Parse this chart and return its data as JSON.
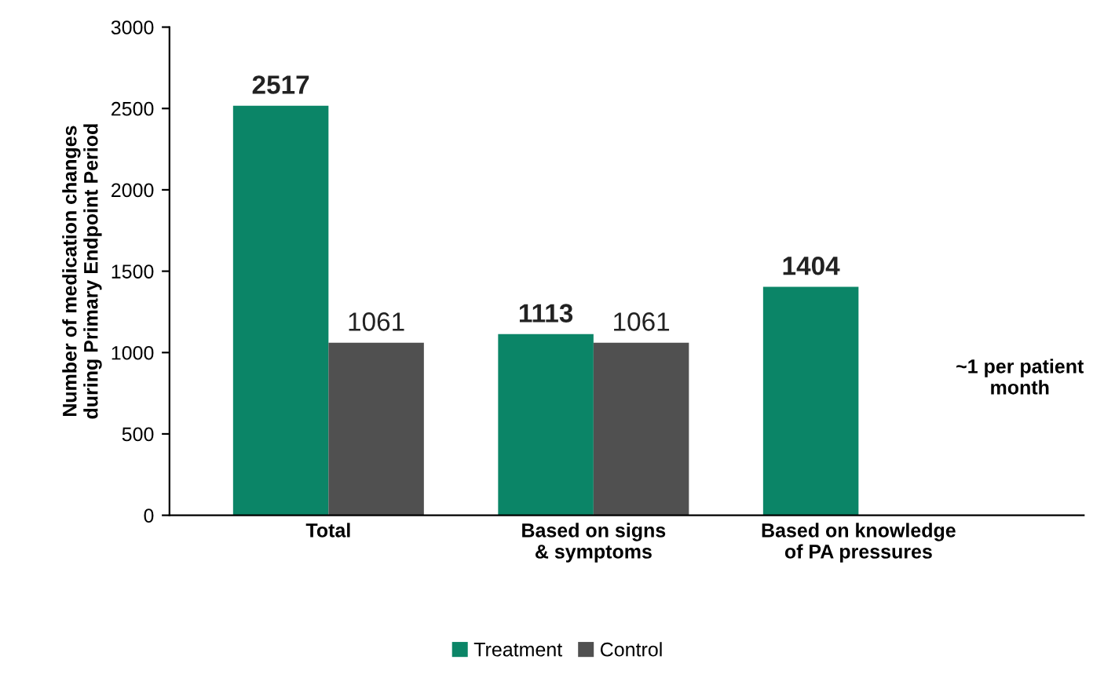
{
  "chart_data": {
    "type": "bar",
    "ylabel": "Number of medication changes\nduring Primary Endpoint Period",
    "categories": [
      "Total",
      "Based on signs\n& symptoms",
      "Based on knowledge\nof PA pressures"
    ],
    "series": [
      {
        "name": "Treatment",
        "color": "#0b8567",
        "values": [
          2517,
          1113,
          1404
        ]
      },
      {
        "name": "Control",
        "color": "#505050",
        "values": [
          1061,
          1061,
          null
        ]
      }
    ],
    "ylim": [
      0,
      3000
    ],
    "yticks": [
      0,
      500,
      1000,
      1500,
      2000,
      2500,
      3000
    ],
    "grid": false,
    "legend": "bottom",
    "data_labels": true,
    "annotations": [
      "~1 per patient\nmonth"
    ]
  }
}
